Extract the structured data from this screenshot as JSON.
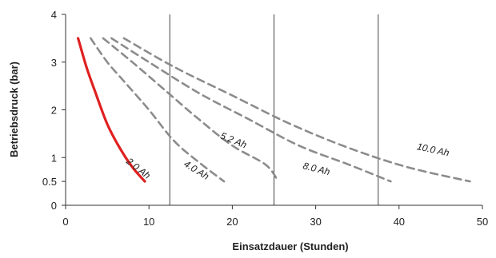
{
  "chart_data": {
    "type": "line",
    "xlabel": "Einsatzdauer (Stunden)",
    "ylabel": "Betriebsdruck (bar)",
    "xlim": [
      0,
      50
    ],
    "ylim": [
      0,
      4
    ],
    "x_ticks": [
      0,
      10,
      20,
      30,
      40,
      50
    ],
    "x_tick_labels": [
      "0",
      "10",
      "20",
      "30",
      "40",
      "50"
    ],
    "y_ticks": [
      0,
      0.5,
      1,
      2,
      3,
      4
    ],
    "y_tick_labels": [
      "0",
      "0.5",
      "1",
      "2",
      "3",
      "4"
    ],
    "vertical_reference_lines": [
      12.5,
      25,
      37.5
    ],
    "grid": false,
    "series": [
      {
        "name": "2.0 Ah",
        "style": "solid",
        "color": "#e02020",
        "points": [
          [
            1.5,
            3.5
          ],
          [
            2.5,
            2.9
          ],
          [
            3.5,
            2.4
          ],
          [
            5,
            1.7
          ],
          [
            6.5,
            1.2
          ],
          [
            8,
            0.8
          ],
          [
            9.5,
            0.5
          ]
        ]
      },
      {
        "name": "4.0 Ah",
        "style": "dashed",
        "color": "#8c8c8c",
        "points": [
          [
            3,
            3.5
          ],
          [
            5,
            3.0
          ],
          [
            7,
            2.6
          ],
          [
            10,
            2.0
          ],
          [
            13,
            1.35
          ],
          [
            16,
            0.9
          ],
          [
            19,
            0.5
          ]
        ]
      },
      {
        "name": "5.2 Ah",
        "style": "dashed",
        "color": "#8c8c8c",
        "points": [
          [
            4.5,
            3.5
          ],
          [
            8,
            3.0
          ],
          [
            12,
            2.4
          ],
          [
            16,
            1.8
          ],
          [
            20,
            1.25
          ],
          [
            24,
            0.85
          ],
          [
            25.5,
            0.5
          ]
        ]
      },
      {
        "name": "8.0 Ah",
        "style": "dashed",
        "color": "#8c8c8c",
        "points": [
          [
            5.5,
            3.5
          ],
          [
            10,
            3.0
          ],
          [
            16,
            2.35
          ],
          [
            22,
            1.8
          ],
          [
            28,
            1.25
          ],
          [
            34,
            0.85
          ],
          [
            39,
            0.5
          ]
        ]
      },
      {
        "name": "10.0 Ah",
        "style": "dashed",
        "color": "#8c8c8c",
        "points": [
          [
            7,
            3.5
          ],
          [
            13,
            2.9
          ],
          [
            20,
            2.3
          ],
          [
            27,
            1.7
          ],
          [
            34,
            1.2
          ],
          [
            41,
            0.8
          ],
          [
            48.5,
            0.5
          ]
        ]
      }
    ]
  }
}
